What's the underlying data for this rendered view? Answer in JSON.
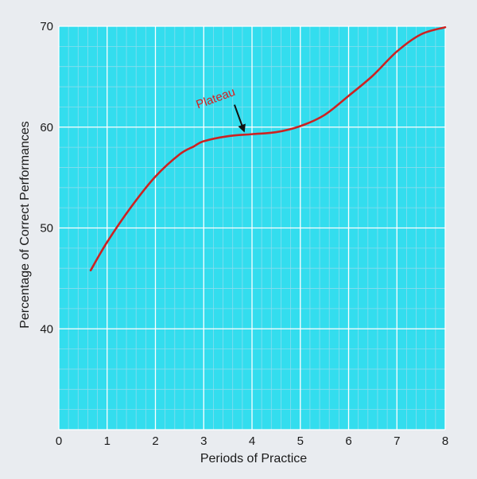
{
  "chart_data": {
    "type": "line",
    "xlabel": "Periods of Practice",
    "ylabel": "Percentage of Correct Performances",
    "xlim": [
      0,
      8
    ],
    "ylim": [
      30,
      70
    ],
    "x_ticks": [
      "0",
      "1",
      "2",
      "3",
      "4",
      "5",
      "6",
      "7",
      "8"
    ],
    "y_ticks": [
      "40",
      "50",
      "60",
      "70"
    ],
    "y_tick_values": [
      40,
      50,
      60,
      70
    ],
    "grid": true,
    "series": [
      {
        "color": "#cc2222",
        "x": [
          0.66,
          1.0,
          1.5,
          2.0,
          2.5,
          2.8,
          3.0,
          3.5,
          4.0,
          4.5,
          5.0,
          5.5,
          6.0,
          6.5,
          7.0,
          7.5,
          8.0
        ],
        "y": [
          45.8,
          48.6,
          52.1,
          55.1,
          57.3,
          58.1,
          58.6,
          59.1,
          59.3,
          59.5,
          60.1,
          61.2,
          63.1,
          65.1,
          67.5,
          69.2,
          69.9
        ]
      }
    ],
    "annotations": [
      {
        "text": "Plateau",
        "x": 3.9,
        "y": 59.3,
        "color": "#cc2222"
      }
    ],
    "colors": {
      "background": "#e9ecf0",
      "plot_fill": "#33ddee",
      "minor_grid": "#88ddee",
      "major_grid": "#ffffff",
      "line": "#cc2222",
      "arrow": "#111111"
    }
  }
}
